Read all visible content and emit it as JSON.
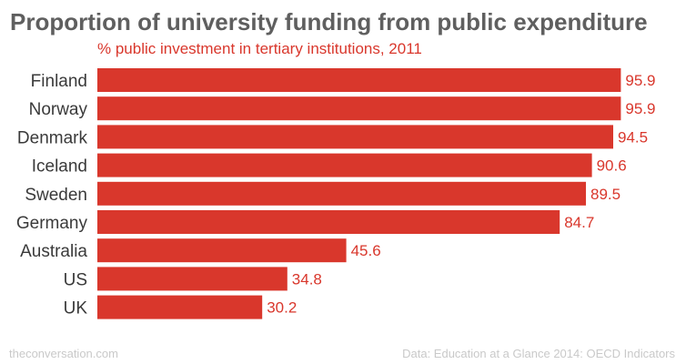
{
  "chart_data": {
    "type": "bar",
    "orientation": "horizontal",
    "title": "Proportion of university funding from public expenditure",
    "subtitle": "% public investment in tertiary institutions, 2011",
    "categories": [
      "Finland",
      "Norway",
      "Denmark",
      "Iceland",
      "Sweden",
      "Germany",
      "Australia",
      "US",
      "UK"
    ],
    "values": [
      95.9,
      95.9,
      94.5,
      90.6,
      89.5,
      84.7,
      45.6,
      34.8,
      30.2
    ],
    "value_labels": [
      "95.9",
      "95.9",
      "94.5",
      "90.6",
      "89.5",
      "84.7",
      "45.6",
      "34.8",
      "30.2"
    ],
    "xlim": [
      0,
      100
    ],
    "grid": false,
    "bar_color": "#d9372c"
  },
  "footer": {
    "left": "theconversation.com",
    "right": "Data: Education at a Glance 2014: OECD Indicators"
  }
}
